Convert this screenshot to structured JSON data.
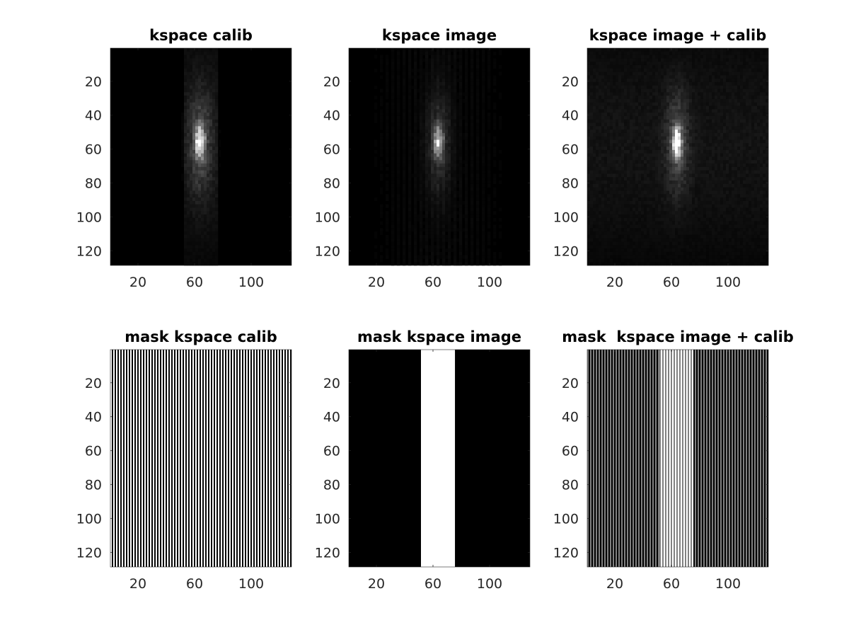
{
  "figure": {
    "background": "#ffffff",
    "colormap": "gray"
  },
  "chart_data": [
    {
      "type": "heatmap",
      "title": "kspace calib",
      "content": "kspace_magnitude",
      "rows": 128,
      "cols": 128,
      "xlim": [
        0.5,
        128.5
      ],
      "ylim": [
        0.5,
        128.5
      ],
      "xticks": [
        20,
        60,
        100
      ],
      "yticks": [
        20,
        40,
        60,
        80,
        100,
        120
      ],
      "center": [
        64,
        56
      ],
      "acquired_band": [
        52,
        76
      ],
      "wide_halo": true,
      "brightness": 1.0
    },
    {
      "type": "heatmap",
      "title": "kspace image",
      "content": "kspace_magnitude",
      "rows": 128,
      "cols": 128,
      "xlim": [
        0.5,
        128.5
      ],
      "ylim": [
        0.5,
        128.5
      ],
      "xticks": [
        20,
        60,
        100
      ],
      "yticks": [
        20,
        40,
        60,
        80,
        100,
        120
      ],
      "center": [
        64,
        56
      ],
      "acquired_band": [
        1,
        128
      ],
      "wide_halo": false,
      "brightness": 0.75
    },
    {
      "type": "heatmap",
      "title": "kspace image + calib",
      "content": "kspace_magnitude",
      "rows": 128,
      "cols": 128,
      "xlim": [
        0.5,
        128.5
      ],
      "ylim": [
        0.5,
        128.5
      ],
      "xticks": [
        20,
        60,
        100
      ],
      "yticks": [
        20,
        40,
        60,
        80,
        100,
        120
      ],
      "center": [
        64,
        56
      ],
      "acquired_band": [
        1,
        128
      ],
      "wide_halo": true,
      "brightness": 0.95
    },
    {
      "type": "heatmap",
      "title": "mask kspace calib",
      "content": "mask",
      "rows": 128,
      "cols": 128,
      "xlim": [
        0.5,
        128.5
      ],
      "ylim": [
        0.5,
        128.5
      ],
      "xticks": [
        20,
        60,
        100
      ],
      "yticks": [
        20,
        40,
        60,
        80,
        100,
        120
      ],
      "column_values": {
        "outside": [
          1,
          0
        ],
        "band": [
          1,
          0
        ],
        "band_range": [
          52,
          75
        ]
      }
    },
    {
      "type": "heatmap",
      "title": "mask kspace image",
      "content": "mask",
      "rows": 128,
      "cols": 128,
      "xlim": [
        0.5,
        128.5
      ],
      "ylim": [
        0.5,
        128.5
      ],
      "xticks": [
        20,
        60,
        100
      ],
      "yticks": [
        20,
        40,
        60,
        80,
        100,
        120
      ],
      "column_values": {
        "outside": [
          0
        ],
        "band": [
          1
        ],
        "band_range": [
          52,
          75
        ]
      }
    },
    {
      "type": "heatmap",
      "title": "mask  kspace image + calib",
      "content": "mask",
      "rows": 128,
      "cols": 128,
      "xlim": [
        0.5,
        128.5
      ],
      "ylim": [
        0.5,
        128.5
      ],
      "xticks": [
        20,
        60,
        100
      ],
      "yticks": [
        20,
        40,
        60,
        80,
        100,
        120
      ],
      "column_values": {
        "outside": [
          0.5,
          0
        ],
        "band": [
          1,
          0.5
        ],
        "band_range": [
          52,
          75
        ]
      }
    }
  ]
}
